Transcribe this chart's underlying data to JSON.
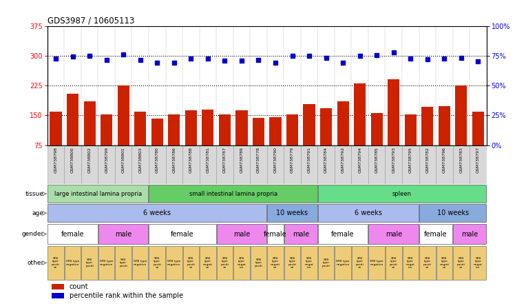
{
  "title": "GDS3987 / 10605113",
  "samples": [
    "GSM738798",
    "GSM738800",
    "GSM738802",
    "GSM738799",
    "GSM738801",
    "GSM738803",
    "GSM738780",
    "GSM738786",
    "GSM738788",
    "GSM738781",
    "GSM738787",
    "GSM738789",
    "GSM738778",
    "GSM738790",
    "GSM738779",
    "GSM738791",
    "GSM738784",
    "GSM738792",
    "GSM738794",
    "GSM738785",
    "GSM738793",
    "GSM738795",
    "GSM738782",
    "GSM738796",
    "GSM738783",
    "GSM738797"
  ],
  "bar_values": [
    160,
    205,
    185,
    152,
    225,
    160,
    142,
    152,
    162,
    165,
    152,
    162,
    143,
    145,
    153,
    178,
    168,
    185,
    230,
    155,
    240,
    152,
    172,
    173,
    225,
    160
  ],
  "dot_values_left_scale": [
    293,
    298,
    300,
    289,
    304,
    289,
    283,
    283,
    293,
    293,
    287,
    287,
    290,
    283,
    300,
    300,
    294,
    283,
    300,
    301,
    308,
    293,
    292,
    293,
    295,
    286
  ],
  "bar_color": "#cc2200",
  "dot_color": "#0000cc",
  "left_ylim": [
    75,
    375
  ],
  "left_yticks": [
    75,
    150,
    225,
    300,
    375
  ],
  "right_yticks": [
    0,
    25,
    50,
    75,
    100
  ],
  "right_yticklabels": [
    "0%",
    "25%",
    "50%",
    "75%",
    "100%"
  ],
  "hlines": [
    150,
    225,
    300
  ],
  "tissue_groups": [
    {
      "label": "large intestinal lamina propria",
      "start": 0,
      "end": 6,
      "color": "#aaddaa"
    },
    {
      "label": "small intestinal lamina propria",
      "start": 6,
      "end": 16,
      "color": "#66cc66"
    },
    {
      "label": "spleen",
      "start": 16,
      "end": 26,
      "color": "#66dd88"
    }
  ],
  "age_groups": [
    {
      "label": "6 weeks",
      "start": 0,
      "end": 13,
      "color": "#aabbee"
    },
    {
      "label": "10 weeks",
      "start": 13,
      "end": 16,
      "color": "#88aadd"
    },
    {
      "label": "6 weeks",
      "start": 16,
      "end": 22,
      "color": "#aabbee"
    },
    {
      "label": "10 weeks",
      "start": 22,
      "end": 26,
      "color": "#88aadd"
    }
  ],
  "gender_groups": [
    {
      "label": "female",
      "start": 0,
      "end": 3,
      "color": "#ffffff"
    },
    {
      "label": "male",
      "start": 3,
      "end": 6,
      "color": "#ee88ee"
    },
    {
      "label": "female",
      "start": 6,
      "end": 10,
      "color": "#ffffff"
    },
    {
      "label": "male",
      "start": 10,
      "end": 13,
      "color": "#ee88ee"
    },
    {
      "label": "female",
      "start": 13,
      "end": 14,
      "color": "#ffffff"
    },
    {
      "label": "male",
      "start": 14,
      "end": 16,
      "color": "#ee88ee"
    },
    {
      "label": "female",
      "start": 16,
      "end": 19,
      "color": "#ffffff"
    },
    {
      "label": "male",
      "start": 19,
      "end": 22,
      "color": "#ee88ee"
    },
    {
      "label": "female",
      "start": 22,
      "end": 24,
      "color": "#ffffff"
    },
    {
      "label": "male",
      "start": 24,
      "end": 26,
      "color": "#ee88ee"
    }
  ],
  "other_labels": [
    "SFB\ntype\npositi\nve",
    "SFB type\nnegative",
    "SFB\ntype\npositi",
    "SFB type\nnegative",
    "SFB\ntype\npositi",
    "SFB type\nnegative",
    "SFB\ntype\npositi\nve",
    "SFB type\nnegative",
    "SFB\ntype\npositi\nve",
    "SFB\ntype\nnegati\nve",
    "SFB\ntype\npositi\nve",
    "SFB\ntype\nnegat\nive",
    "SFB\ntype\npositi",
    "SFB\ntype\nnegati\nve",
    "SFB\ntype\npositi\nve",
    "SFB\ntype\nnegat\nive",
    "SFB\ntype\npositi",
    "SFB type\nnegative",
    "SFB\ntype\npositi\nve",
    "SFB type\nnegative",
    "SFB\ntype\npositi\nve",
    "SFB\ntype\nnegat\nive",
    "SFB\ntype\npositi\nve",
    "SFB\ntype\nnegati\nve",
    "SFB\ntype\npositi\nve",
    "SFB\ntype\nnegat\nive"
  ],
  "other_color": "#eecc77",
  "legend_count_color": "#cc2200",
  "legend_dot_color": "#0000cc"
}
